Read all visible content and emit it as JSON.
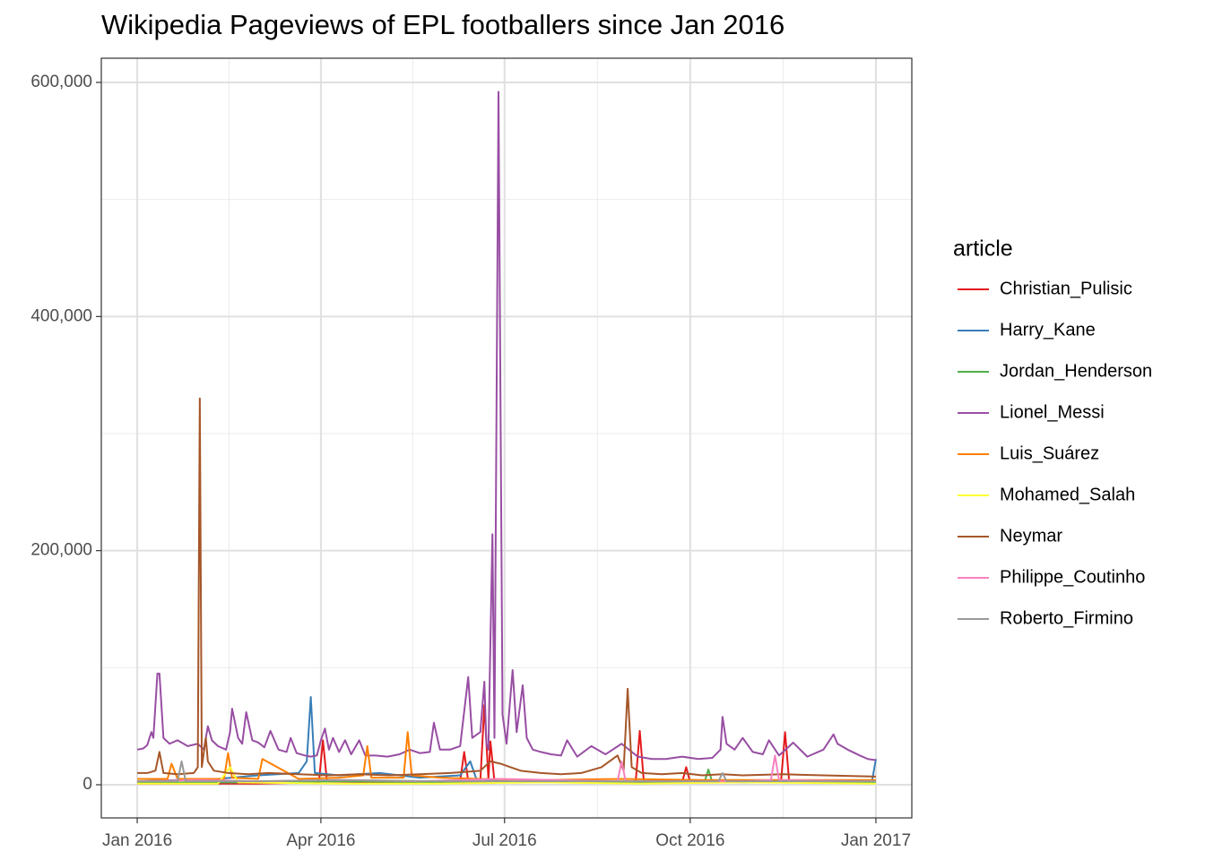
{
  "chart_data": {
    "type": "line",
    "title": "Wikipedia Pageviews of EPL footballers since Jan 2016",
    "legend_title": "article",
    "legend_position": "right",
    "grid": true,
    "xlim": [
      -17.8,
      383.8
    ],
    "xticks": [
      {
        "value": 0,
        "label": "Jan 2016"
      },
      {
        "value": 91,
        "label": "Apr 2016"
      },
      {
        "value": 182,
        "label": "Jul 2016"
      },
      {
        "value": 274,
        "label": "Oct 2016"
      },
      {
        "value": 366,
        "label": "Jan 2017"
      }
    ],
    "xminor": [
      45.5,
      136.5,
      228,
      320
    ],
    "ylim": [
      -28316,
      620663
    ],
    "yticks": [
      0,
      {
        "value": 200000,
        "label": "200,000"
      },
      {
        "value": 400000,
        "label": "400,000"
      },
      {
        "value": 600000,
        "label": "600,000"
      }
    ],
    "yminor": [
      100000,
      300000,
      500000
    ],
    "series": [
      {
        "name": "Christian_Pulisic",
        "color": "#e41a1c",
        "x": [
          0,
          60,
          90,
          92,
          94,
          120,
          150,
          160,
          162,
          164,
          170,
          172,
          174,
          175,
          177,
          200,
          247,
          249,
          251,
          270,
          272,
          274,
          300,
          319,
          321,
          323,
          366
        ],
        "values": [
          1000,
          1000,
          2000,
          38000,
          3000,
          2000,
          2000,
          3000,
          28000,
          3000,
          3000,
          68000,
          5000,
          37000,
          3000,
          2000,
          3000,
          46000,
          3000,
          2000,
          15000,
          2000,
          2000,
          3000,
          45000,
          3000,
          2000
        ]
      },
      {
        "name": "Harry_Kane",
        "color": "#377eb8",
        "x": [
          0,
          20,
          40,
          60,
          80,
          84,
          86,
          88,
          100,
          120,
          140,
          160,
          165,
          168,
          180,
          220,
          260,
          300,
          340,
          364,
          366
        ],
        "values": [
          3000,
          4000,
          5000,
          8000,
          10000,
          20000,
          75000,
          10000,
          8000,
          10000,
          6000,
          8000,
          20000,
          5000,
          3000,
          2000,
          3000,
          2000,
          3000,
          2000,
          22000
        ]
      },
      {
        "name": "Jordan_Henderson",
        "color": "#4daf4a",
        "x": [
          0,
          50,
          100,
          150,
          200,
          250,
          281,
          283,
          285,
          320,
          366
        ],
        "values": [
          2000,
          2000,
          3000,
          2000,
          2000,
          2000,
          2000,
          13000,
          2000,
          2000,
          2000
        ]
      },
      {
        "name": "Lionel_Messi",
        "color": "#984ea3",
        "x": [
          0,
          3,
          5,
          7,
          8,
          10,
          11,
          13,
          16,
          20,
          25,
          30,
          33,
          35,
          37,
          40,
          44,
          46,
          47,
          50,
          52,
          54,
          57,
          60,
          63,
          66,
          70,
          74,
          76,
          79,
          83,
          86,
          89,
          91,
          93,
          95,
          97,
          100,
          103,
          106,
          110,
          113,
          118,
          124,
          130,
          135,
          140,
          145,
          147,
          150,
          155,
          160,
          164,
          166,
          170,
          172,
          173,
          174,
          176,
          177,
          179,
          181,
          183,
          186,
          188,
          191,
          193,
          196,
          200,
          205,
          210,
          213,
          218,
          225,
          232,
          240,
          248,
          255,
          262,
          270,
          278,
          285,
          289,
          290,
          292,
          296,
          300,
          305,
          310,
          313,
          318,
          325,
          332,
          340,
          345,
          347,
          352,
          358,
          362,
          366
        ],
        "values": [
          30000,
          31000,
          34000,
          45000,
          40000,
          95000,
          95000,
          40000,
          35000,
          38000,
          33000,
          35000,
          30000,
          50000,
          38000,
          33000,
          30000,
          45000,
          65000,
          40000,
          35000,
          62000,
          38000,
          36000,
          32000,
          46000,
          30000,
          28000,
          40000,
          27000,
          25000,
          24000,
          25000,
          38000,
          48000,
          30000,
          40000,
          28000,
          38000,
          26000,
          38000,
          25000,
          25000,
          24000,
          26000,
          30000,
          27000,
          28000,
          53000,
          30000,
          30000,
          33000,
          92000,
          40000,
          45000,
          88000,
          35000,
          30000,
          214000,
          40000,
          592000,
          60000,
          35000,
          98000,
          45000,
          85000,
          40000,
          30000,
          28000,
          26000,
          25000,
          38000,
          24000,
          33000,
          26000,
          35000,
          24000,
          22000,
          22000,
          24000,
          22000,
          23000,
          30000,
          58000,
          35000,
          30000,
          40000,
          28000,
          26000,
          38000,
          25000,
          36000,
          24000,
          30000,
          43000,
          35000,
          30000,
          25000,
          22000,
          21000
        ]
      },
      {
        "name": "Luis_Suárez",
        "color": "#ff7f00",
        "x": [
          0,
          15,
          17,
          20,
          43,
          45,
          47,
          60,
          62,
          80,
          100,
          112,
          114,
          116,
          132,
          134,
          136,
          150,
          170,
          200,
          240,
          280,
          320,
          366
        ],
        "values": [
          5000,
          5000,
          18000,
          5000,
          5000,
          27000,
          6000,
          5000,
          22000,
          5000,
          6000,
          8000,
          33000,
          6000,
          6000,
          45000,
          8000,
          6000,
          5000,
          4000,
          5000,
          4000,
          4000,
          4000
        ]
      },
      {
        "name": "Mohamed_Salah",
        "color": "#ffff33",
        "x": [
          0,
          40,
          46,
          50,
          100,
          150,
          200,
          250,
          300,
          366
        ],
        "values": [
          1000,
          1000,
          15000,
          2000,
          1000,
          1000,
          2000,
          1000,
          2000,
          1000
        ]
      },
      {
        "name": "Neymar",
        "color": "#a65628",
        "x": [
          0,
          5,
          9,
          11,
          13,
          20,
          28,
          30,
          31,
          32,
          34,
          35,
          38,
          45,
          55,
          65,
          80,
          95,
          110,
          125,
          140,
          155,
          170,
          175,
          180,
          185,
          190,
          200,
          210,
          220,
          230,
          238,
          241,
          243,
          245,
          250,
          260,
          270,
          280,
          290,
          300,
          320,
          340,
          366
        ],
        "values": [
          10000,
          10000,
          12000,
          28000,
          10000,
          9000,
          10000,
          15000,
          330000,
          15000,
          40000,
          20000,
          12000,
          10000,
          9000,
          10000,
          9000,
          8000,
          9000,
          8000,
          9000,
          10000,
          12000,
          20000,
          18000,
          15000,
          12000,
          10000,
          9000,
          10000,
          15000,
          25000,
          12000,
          82000,
          15000,
          10000,
          9000,
          10000,
          8000,
          9000,
          8000,
          9000,
          8000,
          7000
        ]
      },
      {
        "name": "Philippe_Coutinho",
        "color": "#f781bf",
        "x": [
          0,
          30,
          60,
          100,
          140,
          180,
          238,
          240,
          242,
          300,
          314,
          316,
          318,
          366
        ],
        "values": [
          3000,
          4000,
          3000,
          4000,
          3000,
          5000,
          3000,
          20000,
          3000,
          3000,
          4000,
          25000,
          4000,
          3000
        ]
      },
      {
        "name": "Roberto_Firmino",
        "color": "#999999",
        "x": [
          0,
          20,
          22,
          24,
          60,
          100,
          150,
          200,
          250,
          288,
          290,
          292,
          330,
          366
        ],
        "values": [
          3000,
          3000,
          20000,
          3000,
          3000,
          4000,
          3000,
          3000,
          3000,
          3000,
          10000,
          3000,
          3000,
          3000
        ]
      }
    ]
  }
}
